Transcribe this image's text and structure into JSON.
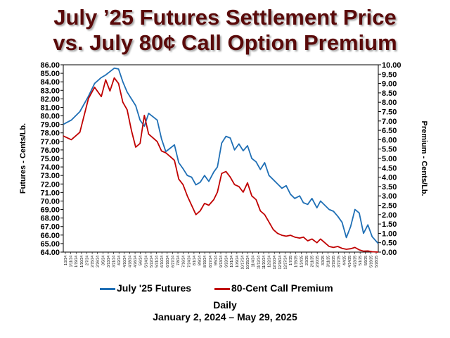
{
  "title_line1": "July ’25 Futures Settlement Price",
  "title_line2": "vs. July 80¢ Call Option Premium",
  "colors": {
    "title": "#5a0a0a",
    "futures": "#1f6fb5",
    "premium": "#c00000"
  },
  "chart_data": {
    "type": "line",
    "ylabel_left": "Futures - Cents/Lb.",
    "ylabel_right": "Premium - Cents/Lb.",
    "xlabel": "Daily",
    "date_range": "January 2, 2024 – May 29, 2025",
    "ylim_left": [
      64,
      86
    ],
    "ylim_right": [
      0,
      10
    ],
    "yticks_left": [
      "64.00",
      "65.00",
      "66.00",
      "67.00",
      "68.00",
      "69.00",
      "70.00",
      "71.00",
      "72.00",
      "73.00",
      "74.00",
      "75.00",
      "76.00",
      "77.00",
      "78.00",
      "79.00",
      "80.00",
      "81.00",
      "82.00",
      "83.00",
      "84.00",
      "85.00",
      "86.00"
    ],
    "yticks_right": [
      "0.00",
      "0.50",
      "1.00",
      "1.50",
      "2.00",
      "2.50",
      "3.00",
      "3.50",
      "4.00",
      "4.50",
      "5.00",
      "5.50",
      "6.00",
      "6.50",
      "7.00",
      "7.50",
      "8.00",
      "8.50",
      "9.00",
      "9.50",
      "10.00"
    ],
    "xticks": [
      "1/2/24",
      "1/11/24",
      "1/19/24",
      "1/30/24",
      "2/7/24",
      "2/15/24",
      "2/26/24",
      "3/5/24",
      "3/13/24",
      "3/21/24",
      "4/2/24",
      "4/10/24",
      "4/18/24",
      "4/26/24",
      "5/6/24",
      "5/14/24",
      "5/22/24",
      "5/31/24",
      "6/10/24",
      "6/18/24",
      "6/27/24",
      "7/8/24",
      "7/16/24",
      "7/24/24",
      "8/1/24",
      "8/9/24",
      "8/19/24",
      "8/27/24",
      "9/5/24",
      "9/13/24",
      "9/23/24",
      "10/1/24",
      "10/9/24",
      "10/17/24",
      "10/25/24",
      "11/4/24",
      "11/12/24",
      "11/20/24",
      "12/2/24",
      "12/10/24",
      "12/18/24",
      "12/27/24",
      "1/7/25",
      "1/15/25",
      "1/24/25",
      "2/3/25",
      "2/11/25",
      "2/20/25",
      "3/3/25",
      "3/11/25",
      "3/19/25",
      "3/27/25",
      "4/4/25",
      "4/14/25",
      "4/23/25",
      "5/1/25",
      "5/9/25",
      "5/19/25",
      "5/28/25"
    ],
    "legend_position": "bottom",
    "grid": false,
    "series": [
      {
        "name": "July '25 Futures",
        "axis": "left",
        "color": "#1f6fb5",
        "x": [
          "2024-01-02",
          "2024-01-15",
          "2024-01-29",
          "2024-02-12",
          "2024-02-22",
          "2024-03-04",
          "2024-03-11",
          "2024-03-18",
          "2024-03-25",
          "2024-04-01",
          "2024-04-08",
          "2024-04-15",
          "2024-04-22",
          "2024-04-29",
          "2024-05-06",
          "2024-05-13",
          "2024-05-20",
          "2024-06-03",
          "2024-06-10",
          "2024-06-17",
          "2024-06-24",
          "2024-07-01",
          "2024-07-08",
          "2024-07-15",
          "2024-07-22",
          "2024-07-29",
          "2024-08-05",
          "2024-08-12",
          "2024-08-19",
          "2024-08-26",
          "2024-09-03",
          "2024-09-09",
          "2024-09-16",
          "2024-09-23",
          "2024-09-30",
          "2024-10-07",
          "2024-10-14",
          "2024-10-21",
          "2024-10-28",
          "2024-11-04",
          "2024-11-11",
          "2024-11-18",
          "2024-11-25",
          "2024-12-02",
          "2024-12-09",
          "2024-12-16",
          "2024-12-23",
          "2024-12-30",
          "2025-01-06",
          "2025-01-13",
          "2025-01-21",
          "2025-01-27",
          "2025-02-03",
          "2025-02-10",
          "2025-02-18",
          "2025-02-24",
          "2025-03-03",
          "2025-03-10",
          "2025-03-17",
          "2025-03-24",
          "2025-03-31",
          "2025-04-07",
          "2025-04-14",
          "2025-04-21",
          "2025-04-28",
          "2025-05-05",
          "2025-05-12",
          "2025-05-19",
          "2025-05-29"
        ],
        "y": [
          79.0,
          79.5,
          80.5,
          82.3,
          83.8,
          84.5,
          84.8,
          85.2,
          85.6,
          85.5,
          84.0,
          82.8,
          82.0,
          81.2,
          79.5,
          78.8,
          80.3,
          79.5,
          77.3,
          75.8,
          76.2,
          76.6,
          74.5,
          73.8,
          73.0,
          72.8,
          71.9,
          72.2,
          73.0,
          72.3,
          73.4,
          74.0,
          76.8,
          77.6,
          77.4,
          76.0,
          76.7,
          75.9,
          76.5,
          75.0,
          74.6,
          73.7,
          74.5,
          73.0,
          72.5,
          72.0,
          71.5,
          71.8,
          70.8,
          70.3,
          70.6,
          69.8,
          69.6,
          70.3,
          69.2,
          70.0,
          69.5,
          69.0,
          68.8,
          68.2,
          67.5,
          65.7,
          67.0,
          69.0,
          68.6,
          66.2,
          67.2,
          65.8,
          65.0
        ]
      },
      {
        "name": "80-Cent Call Premium",
        "axis": "right",
        "color": "#c00000",
        "x": [
          "2024-01-02",
          "2024-01-15",
          "2024-01-29",
          "2024-02-12",
          "2024-02-22",
          "2024-03-04",
          "2024-03-11",
          "2024-03-18",
          "2024-03-25",
          "2024-04-01",
          "2024-04-08",
          "2024-04-15",
          "2024-04-22",
          "2024-04-29",
          "2024-05-06",
          "2024-05-13",
          "2024-05-20",
          "2024-06-03",
          "2024-06-10",
          "2024-06-17",
          "2024-06-24",
          "2024-07-01",
          "2024-07-08",
          "2024-07-15",
          "2024-07-22",
          "2024-07-29",
          "2024-08-05",
          "2024-08-12",
          "2024-08-19",
          "2024-08-26",
          "2024-09-03",
          "2024-09-09",
          "2024-09-16",
          "2024-09-23",
          "2024-09-30",
          "2024-10-07",
          "2024-10-14",
          "2024-10-21",
          "2024-10-28",
          "2024-11-04",
          "2024-11-11",
          "2024-11-18",
          "2024-11-25",
          "2024-12-02",
          "2024-12-09",
          "2024-12-16",
          "2024-12-23",
          "2024-12-30",
          "2025-01-06",
          "2025-01-13",
          "2025-01-21",
          "2025-01-27",
          "2025-02-03",
          "2025-02-10",
          "2025-02-18",
          "2025-02-24",
          "2025-03-03",
          "2025-03-10",
          "2025-03-17",
          "2025-03-24",
          "2025-03-31",
          "2025-04-07",
          "2025-04-14",
          "2025-04-21",
          "2025-04-28",
          "2025-05-05",
          "2025-05-12",
          "2025-05-19",
          "2025-05-29"
        ],
        "y": [
          6.2,
          6.0,
          6.4,
          8.2,
          8.8,
          8.3,
          9.2,
          8.6,
          9.3,
          9.0,
          8.0,
          7.6,
          6.5,
          5.6,
          5.8,
          7.3,
          6.3,
          5.9,
          5.4,
          5.3,
          5.1,
          4.9,
          3.9,
          3.6,
          3.0,
          2.5,
          2.0,
          2.2,
          2.6,
          2.5,
          2.8,
          3.2,
          4.2,
          4.3,
          4.0,
          3.6,
          3.5,
          3.2,
          3.7,
          3.0,
          2.8,
          2.2,
          2.0,
          1.6,
          1.2,
          1.0,
          0.9,
          0.85,
          0.9,
          0.8,
          0.75,
          0.8,
          0.6,
          0.7,
          0.5,
          0.7,
          0.5,
          0.3,
          0.25,
          0.3,
          0.2,
          0.15,
          0.18,
          0.25,
          0.12,
          0.05,
          0.06,
          0.02,
          0.0
        ]
      }
    ]
  }
}
